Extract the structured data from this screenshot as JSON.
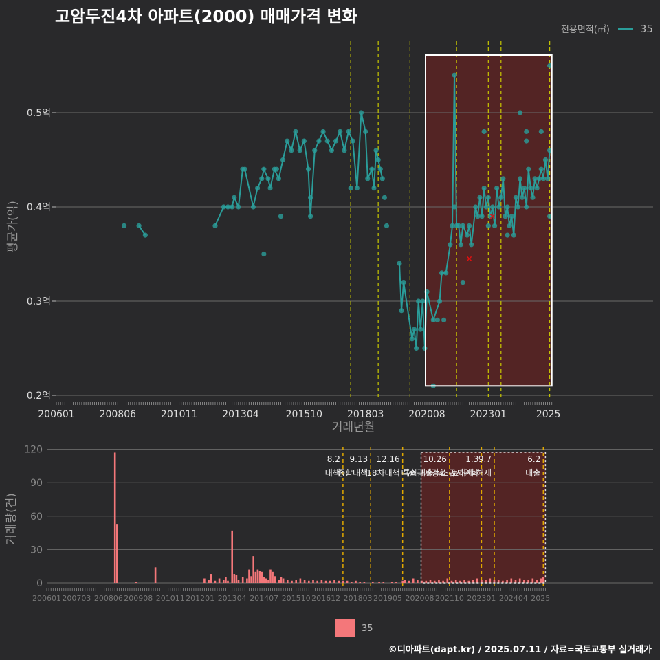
{
  "title": "고암두진4차 아파트(2000) 매매가격 변화",
  "legend_top": {
    "title": "전용면적(㎡)",
    "label": "35"
  },
  "legend_bottom": {
    "label": "35"
  },
  "footer": "©디아파트(dapt.kr) / 2025.07.11 / 자료=국토교통부 실거래가",
  "colors": {
    "background": "#29292b",
    "series": "#2a9d9a",
    "bars": "#f4777a",
    "policy_line": "#c8c800",
    "highlight": "#5a2323"
  },
  "chart_data": [
    {
      "type": "line",
      "xlabel": "거래년월",
      "ylabel": "평균가(억)",
      "x_ticks": [
        "200601",
        "200806",
        "201011",
        "201304",
        "201510",
        "201803",
        "202008",
        "202301",
        "2025"
      ],
      "y_ticks": [
        "0.2억",
        "0.3억",
        "0.4억",
        "0.5억"
      ],
      "ylim": [
        0.2,
        0.56
      ],
      "grid": true,
      "series": [
        {
          "name": "35",
          "points": [
            [
              "200809",
              0.38
            ],
            [
              "200904",
              0.38
            ],
            [
              "200907",
              0.37
            ],
            [
              "201204",
              0.38
            ],
            [
              "201208",
              0.4
            ],
            [
              "201210",
              0.4
            ],
            [
              "201212",
              0.4
            ],
            [
              "201301",
              0.41
            ],
            [
              "201303",
              0.4
            ],
            [
              "201305",
              0.44
            ],
            [
              "201306",
              0.44
            ],
            [
              "201310",
              0.4
            ],
            [
              "201312",
              0.42
            ],
            [
              "201402",
              0.43
            ],
            [
              "201403",
              0.44
            ],
            [
              "201405",
              0.43
            ],
            [
              "201406",
              0.42
            ],
            [
              "201408",
              0.44
            ],
            [
              "201410",
              0.43
            ],
            [
              "201412",
              0.45
            ],
            [
              "201502",
              0.47
            ],
            [
              "201504",
              0.46
            ],
            [
              "201506",
              0.48
            ],
            [
              "201508",
              0.46
            ],
            [
              "201510",
              0.47
            ],
            [
              "201512",
              0.44
            ],
            [
              "201601",
              0.39
            ],
            [
              "201603",
              0.46
            ],
            [
              "201605",
              0.47
            ],
            [
              "201607",
              0.48
            ],
            [
              "201609",
              0.47
            ],
            [
              "201611",
              0.46
            ],
            [
              "201701",
              0.47
            ],
            [
              "201703",
              0.48
            ],
            [
              "201705",
              0.46
            ],
            [
              "201707",
              0.48
            ],
            [
              "201709",
              0.47
            ],
            [
              "201711",
              0.42
            ],
            [
              "201801",
              0.5
            ],
            [
              "201803",
              0.48
            ],
            [
              "201804",
              0.43
            ],
            [
              "201806",
              0.44
            ],
            [
              "201807",
              0.42
            ],
            [
              "201808",
              0.46
            ],
            [
              "201809",
              0.45
            ],
            [
              "201810",
              0.44
            ],
            [
              "201811",
              0.43
            ],
            [
              "201907",
              0.34
            ],
            [
              "201908",
              0.29
            ],
            [
              "201909",
              0.32
            ],
            [
              "202001",
              0.26
            ],
            [
              "202002",
              0.27
            ],
            [
              "202003",
              0.25
            ],
            [
              "202004",
              0.3
            ],
            [
              "202005",
              0.27
            ],
            [
              "202006",
              0.3
            ],
            [
              "202007",
              0.25
            ],
            [
              "202008",
              0.31
            ],
            [
              "202011",
              0.28
            ],
            [
              "202102",
              0.3
            ],
            [
              "202103",
              0.33
            ],
            [
              "202105",
              0.33
            ],
            [
              "202107",
              0.36
            ],
            [
              "202108",
              0.38
            ],
            [
              "202109",
              0.54
            ],
            [
              "202110",
              0.38
            ],
            [
              "202111",
              0.38
            ],
            [
              "202112",
              0.36
            ],
            [
              "202201",
              0.38
            ],
            [
              "202203",
              0.37
            ],
            [
              "202204",
              0.38
            ],
            [
              "202205",
              0.36
            ],
            [
              "202207",
              0.4
            ],
            [
              "202208",
              0.39
            ],
            [
              "202209",
              0.41
            ],
            [
              "202210",
              0.39
            ],
            [
              "202211",
              0.42
            ],
            [
              "202212",
              0.4
            ],
            [
              "202301",
              0.41
            ],
            [
              "202302",
              0.39
            ],
            [
              "202303",
              0.4
            ],
            [
              "202304",
              0.38
            ],
            [
              "202305",
              0.42
            ],
            [
              "202306",
              0.4
            ],
            [
              "202307",
              0.41
            ],
            [
              "202308",
              0.43
            ],
            [
              "202309",
              0.39
            ],
            [
              "202310",
              0.4
            ],
            [
              "202311",
              0.38
            ],
            [
              "202312",
              0.39
            ],
            [
              "202401",
              0.37
            ],
            [
              "202402",
              0.41
            ],
            [
              "202403",
              0.4
            ],
            [
              "202404",
              0.43
            ],
            [
              "202405",
              0.41
            ],
            [
              "202406",
              0.42
            ],
            [
              "202407",
              0.4
            ],
            [
              "202408",
              0.44
            ],
            [
              "202409",
              0.42
            ],
            [
              "202410",
              0.41
            ],
            [
              "202411",
              0.43
            ],
            [
              "202412",
              0.42
            ],
            [
              "202501",
              0.43
            ],
            [
              "202502",
              0.44
            ],
            [
              "202503",
              0.43
            ],
            [
              "202504",
              0.45
            ],
            [
              "202505",
              0.43
            ],
            [
              "202506",
              0.46
            ]
          ]
        }
      ],
      "extra_points": [
        [
          "201403",
          0.35
        ],
        [
          "201409",
          0.44
        ],
        [
          "201411",
          0.39
        ],
        [
          "201601",
          0.41
        ],
        [
          "201708",
          0.42
        ],
        [
          "201812",
          0.41
        ],
        [
          "201901",
          0.38
        ],
        [
          "202011",
          0.21
        ],
        [
          "202101",
          0.28
        ],
        [
          "202104",
          0.28
        ],
        [
          "202109",
          0.4
        ],
        [
          "202201",
          0.32
        ],
        [
          "202211",
          0.48
        ],
        [
          "202301",
          0.38
        ],
        [
          "202310",
          0.37
        ],
        [
          "202404",
          0.5
        ],
        [
          "202407",
          0.48
        ],
        [
          "202407",
          0.47
        ],
        [
          "202502",
          0.48
        ],
        [
          "202506",
          0.55
        ],
        [
          "202506",
          0.39
        ]
      ],
      "marker_x": [
        [
          "202204",
          0.345
        ],
        [
          "202303",
          0.39
        ]
      ],
      "policy_lines": [
        "201708",
        "201809",
        "201912",
        "202110",
        "202301",
        "202307",
        "202506"
      ],
      "highlight_range": [
        "202008",
        "202507"
      ]
    },
    {
      "type": "bar",
      "xlabel": "",
      "ylabel": "거래량(건)",
      "x_ticks": [
        "200601",
        "200703",
        "200806",
        "200908",
        "201011",
        "201201",
        "201304",
        "201407",
        "201510",
        "201612",
        "201803",
        "201905",
        "202008",
        "202110",
        "202301",
        "202404",
        "2025"
      ],
      "y_ticks": [
        "0",
        "30",
        "60",
        "90",
        "120"
      ],
      "ylim": [
        0,
        120
      ],
      "series": [
        {
          "name": "35",
          "values": [
            [
              "200809",
              117
            ],
            [
              "200810",
              53
            ],
            [
              "200907",
              1
            ],
            [
              "201004",
              14
            ],
            [
              "201203",
              4
            ],
            [
              "201205",
              3
            ],
            [
              "201206",
              8
            ],
            [
              "201208",
              2
            ],
            [
              "201210",
              4
            ],
            [
              "201212",
              3
            ],
            [
              "201301",
              5
            ],
            [
              "201302",
              2
            ],
            [
              "201304",
              47
            ],
            [
              "201305",
              8
            ],
            [
              "201306",
              7
            ],
            [
              "201307",
              3
            ],
            [
              "201309",
              5
            ],
            [
              "201311",
              4
            ],
            [
              "201312",
              12
            ],
            [
              "201401",
              6
            ],
            [
              "201402",
              24
            ],
            [
              "201403",
              10
            ],
            [
              "201404",
              12
            ],
            [
              "201405",
              11
            ],
            [
              "201406",
              10
            ],
            [
              "201407",
              5
            ],
            [
              "201408",
              4
            ],
            [
              "201409",
              3
            ],
            [
              "201410",
              12
            ],
            [
              "201411",
              10
            ],
            [
              "201412",
              6
            ],
            [
              "201502",
              3
            ],
            [
              "201503",
              5
            ],
            [
              "201504",
              4
            ],
            [
              "201506",
              3
            ],
            [
              "201508",
              2
            ],
            [
              "201510",
              3
            ],
            [
              "201512",
              4
            ],
            [
              "201602",
              3
            ],
            [
              "201604",
              2
            ],
            [
              "201606",
              3
            ],
            [
              "201608",
              2
            ],
            [
              "201610",
              3
            ],
            [
              "201612",
              2
            ],
            [
              "201702",
              2
            ],
            [
              "201704",
              3
            ],
            [
              "201706",
              2
            ],
            [
              "201708",
              2
            ],
            [
              "201710",
              2
            ],
            [
              "201712",
              1
            ],
            [
              "201802",
              2
            ],
            [
              "201804",
              1
            ],
            [
              "201806",
              1
            ],
            [
              "201810",
              1
            ],
            [
              "201901",
              1
            ],
            [
              "201903",
              1
            ],
            [
              "201907",
              1
            ],
            [
              "201909",
              1
            ],
            [
              "201912",
              2
            ],
            [
              "202001",
              3
            ],
            [
              "202003",
              2
            ],
            [
              "202005",
              4
            ],
            [
              "202007",
              3
            ],
            [
              "202009",
              2
            ],
            [
              "202011",
              2
            ],
            [
              "202101",
              3
            ],
            [
              "202103",
              2
            ],
            [
              "202105",
              3
            ],
            [
              "202107",
              2
            ],
            [
              "202109",
              4
            ],
            [
              "202111",
              2
            ],
            [
              "202201",
              3
            ],
            [
              "202203",
              2
            ],
            [
              "202205",
              3
            ],
            [
              "202207",
              2
            ],
            [
              "202209",
              3
            ],
            [
              "202211",
              4
            ],
            [
              "202301",
              3
            ],
            [
              "202303",
              3
            ],
            [
              "202305",
              4
            ],
            [
              "202307",
              3
            ],
            [
              "202309",
              3
            ],
            [
              "202311",
              2
            ],
            [
              "202401",
              3
            ],
            [
              "202403",
              4
            ],
            [
              "202405",
              3
            ],
            [
              "202407",
              4
            ],
            [
              "202409",
              3
            ],
            [
              "202411",
              3
            ],
            [
              "202501",
              4
            ],
            [
              "202503",
              3
            ],
            [
              "202505",
              4
            ],
            [
              "202506",
              5
            ]
          ]
        }
      ],
      "policy_lines": [
        "201708",
        "201809",
        "201912",
        "202110",
        "202301",
        "202307",
        "202506"
      ],
      "policy_annotations": [
        {
          "x": "201708",
          "date": "8.2",
          "label": "대책"
        },
        {
          "x": "201809",
          "date": "9.13",
          "label": "종합대책"
        },
        {
          "x": "201912",
          "date": "12.16",
          "label": "18차대책"
        },
        {
          "x": "202110",
          "date": "10.26",
          "label": "대출규제강화"
        },
        {
          "x": "202301",
          "date": "1.3",
          "label": "규제완화"
        },
        {
          "x": "202307",
          "date": "9.7",
          "label": "특례대출축소 토허제 해제"
        },
        {
          "x": "202506",
          "date": "6.2",
          "label": "대출"
        }
      ],
      "highlight_range": [
        "202008",
        "202507"
      ]
    }
  ]
}
